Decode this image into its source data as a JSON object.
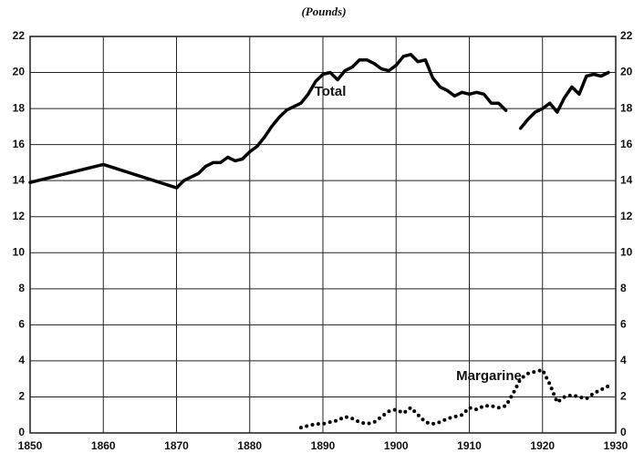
{
  "chart_data": {
    "type": "line",
    "title": "(Pounds)",
    "x": [
      1850,
      1860,
      1870,
      1871,
      1872,
      1873,
      1874,
      1875,
      1876,
      1877,
      1878,
      1879,
      1880,
      1881,
      1882,
      1883,
      1884,
      1885,
      1886,
      1887,
      1888,
      1889,
      1890,
      1891,
      1892,
      1893,
      1894,
      1895,
      1896,
      1897,
      1898,
      1899,
      1900,
      1901,
      1902,
      1903,
      1904,
      1905,
      1906,
      1907,
      1908,
      1909,
      1910,
      1911,
      1912,
      1913,
      1914,
      1915,
      1916,
      1917,
      1918,
      1919,
      1920,
      1921,
      1922,
      1923,
      1924,
      1925,
      1926,
      1927,
      1928,
      1929
    ],
    "series": [
      {
        "name": "Total",
        "color": "#000000",
        "style": "solid",
        "values": [
          13.9,
          14.9,
          13.6,
          14.0,
          14.2,
          14.4,
          14.8,
          15.0,
          15.0,
          15.3,
          15.1,
          15.2,
          15.6,
          15.9,
          16.4,
          17.0,
          17.5,
          17.9,
          18.1,
          18.3,
          18.8,
          19.5,
          19.9,
          20.0,
          19.6,
          20.1,
          20.3,
          20.7,
          20.7,
          20.5,
          20.2,
          20.1,
          20.4,
          20.9,
          21.0,
          20.6,
          20.7,
          19.7,
          19.2,
          19.0,
          18.7,
          18.9,
          18.8,
          18.9,
          18.8,
          18.3,
          18.3,
          17.9,
          null,
          16.9,
          17.4,
          17.8,
          18.0,
          18.3,
          17.8,
          18.6,
          19.2,
          18.8,
          19.8,
          19.9,
          19.8,
          20.0
        ]
      },
      {
        "name": "Margarine",
        "color": "#000000",
        "style": "dotted",
        "values": [
          null,
          null,
          null,
          null,
          null,
          null,
          null,
          null,
          null,
          null,
          null,
          null,
          null,
          null,
          null,
          null,
          null,
          null,
          null,
          0.3,
          0.4,
          0.5,
          0.5,
          0.6,
          0.7,
          0.9,
          0.8,
          0.6,
          0.5,
          0.6,
          0.9,
          1.2,
          1.3,
          1.1,
          1.4,
          1.0,
          0.6,
          0.5,
          0.6,
          0.8,
          0.9,
          1.0,
          1.4,
          1.3,
          1.5,
          1.5,
          1.4,
          1.5,
          2.2,
          3.0,
          3.3,
          3.4,
          3.5,
          2.7,
          1.7,
          2.0,
          2.1,
          2.0,
          1.9,
          2.2,
          2.4,
          2.6
        ]
      }
    ],
    "xlim": [
      1850,
      1930
    ],
    "xticks": [
      1850,
      1860,
      1870,
      1880,
      1890,
      1900,
      1910,
      1920,
      1930
    ],
    "ylim": [
      0,
      22
    ],
    "yticks": [
      0,
      2,
      4,
      6,
      8,
      10,
      12,
      14,
      16,
      18,
      20,
      22
    ],
    "grid": true
  }
}
